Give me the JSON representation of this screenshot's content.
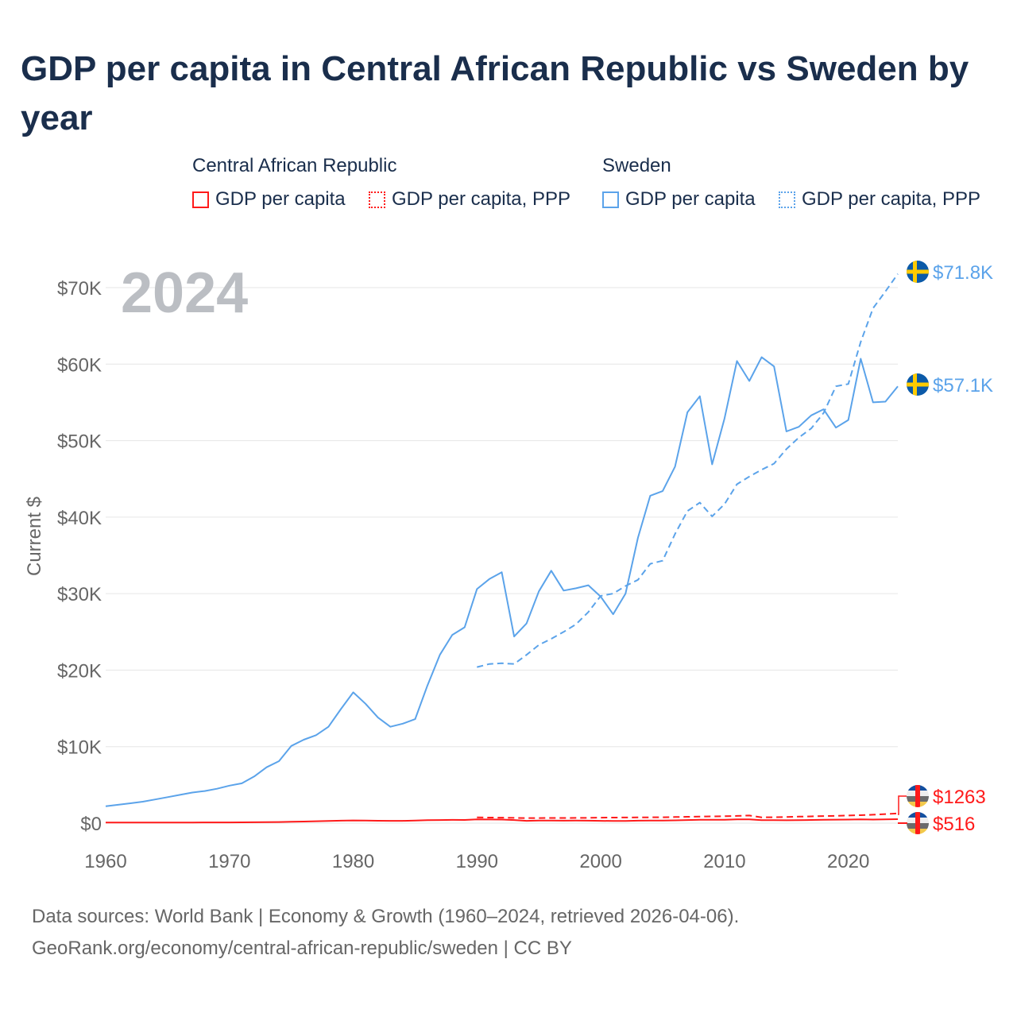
{
  "title": "GDP per capita in Central African Republic vs Sweden by year",
  "legend": {
    "groups": [
      {
        "name": "Central African Republic",
        "items": [
          "GDP per capita",
          "GDP per capita, PPP"
        ],
        "color": "#ff1a1a"
      },
      {
        "name": "Sweden",
        "items": [
          "GDP per capita",
          "GDP per capita, PPP"
        ],
        "color": "#5ba3ea"
      }
    ]
  },
  "year_label": "2024",
  "end_labels": {
    "swe_ppp": "$71.8K",
    "swe_gdp": "$57.1K",
    "car_ppp": "$1263",
    "car_gdp": "$516"
  },
  "footer": {
    "line1": "Data sources: World Bank | Economy & Growth (1960–2024, retrieved 2026-04-06).",
    "line2": "GeoRank.org/economy/central-african-republic/sweden | CC BY"
  },
  "chart_data": {
    "type": "line",
    "title": "GDP per capita in Central African Republic vs Sweden by year",
    "xlabel": "",
    "ylabel": "Current $",
    "xlim": [
      1960,
      2024
    ],
    "ylim": [
      0,
      70000
    ],
    "xticks": [
      1960,
      1970,
      1980,
      1990,
      2000,
      2010,
      2020
    ],
    "xtick_labels": [
      "1960",
      "1970",
      "1980",
      "1990",
      "2000",
      "2010",
      "2020"
    ],
    "yticks": [
      0,
      10000,
      20000,
      30000,
      40000,
      50000,
      60000,
      70000
    ],
    "ytick_labels": [
      "$0",
      "$10K",
      "$20K",
      "$30K",
      "$40K",
      "$50K",
      "$60K",
      "$70K"
    ],
    "grid": true,
    "legend_position": "top",
    "series": [
      {
        "name": "Sweden GDP per capita",
        "color": "#5ba3ea",
        "dash": false,
        "start": 1960,
        "values": [
          2200,
          2400,
          2600,
          2800,
          3100,
          3400,
          3700,
          4000,
          4200,
          4500,
          4900,
          5200,
          6100,
          7300,
          8100,
          10100,
          10900,
          11500,
          12600,
          14900,
          17100,
          15600,
          13800,
          12600,
          13000,
          13600,
          18000,
          22000,
          24600,
          25600,
          30600,
          31900,
          32800,
          24400,
          26100,
          30300,
          33000,
          30400,
          30700,
          31100,
          29600,
          27300,
          30000,
          37300,
          42800,
          43400,
          46600,
          53700,
          55800,
          46900,
          52900,
          60400,
          57800,
          60900,
          59700,
          51200,
          51800,
          53300,
          54100,
          51700,
          52700,
          60700,
          55000,
          55100,
          57100
        ]
      },
      {
        "name": "Sweden GDP per capita, PPP",
        "color": "#5ba3ea",
        "dash": true,
        "start": 1990,
        "values": [
          20400,
          20800,
          20900,
          20800,
          22000,
          23300,
          24100,
          25000,
          26000,
          27600,
          29700,
          30000,
          31000,
          31800,
          33900,
          34300,
          37800,
          40800,
          41900,
          40100,
          41700,
          44300,
          45300,
          46200,
          47000,
          48900,
          50400,
          51600,
          53600,
          57100,
          57400,
          62900,
          67300,
          69500,
          71800
        ]
      },
      {
        "name": "Central African Republic GDP per capita",
        "color": "#ff1a1a",
        "dash": false,
        "start": 1960,
        "values": [
          70,
          72,
          75,
          78,
          80,
          82,
          85,
          88,
          90,
          92,
          95,
          100,
          110,
          130,
          150,
          180,
          210,
          250,
          280,
          320,
          350,
          340,
          310,
          300,
          300,
          330,
          380,
          410,
          430,
          420,
          500,
          480,
          470,
          410,
          300,
          330,
          340,
          320,
          330,
          320,
          300,
          280,
          290,
          320,
          330,
          340,
          360,
          400,
          440,
          440,
          450,
          490,
          500,
          390,
          380,
          370,
          380,
          420,
          450,
          460,
          470,
          500,
          470,
          490,
          516
        ]
      },
      {
        "name": "Central African Republic GDP per capita, PPP",
        "color": "#ff1a1a",
        "dash": true,
        "start": 1990,
        "values": [
          750,
          730,
          720,
          690,
          650,
          660,
          670,
          680,
          690,
          700,
          720,
          730,
          740,
          750,
          760,
          770,
          800,
          830,
          860,
          880,
          900,
          950,
          1000,
          760,
          770,
          800,
          850,
          880,
          920,
          960,
          1000,
          1040,
          1100,
          1180,
          1263
        ]
      }
    ]
  }
}
